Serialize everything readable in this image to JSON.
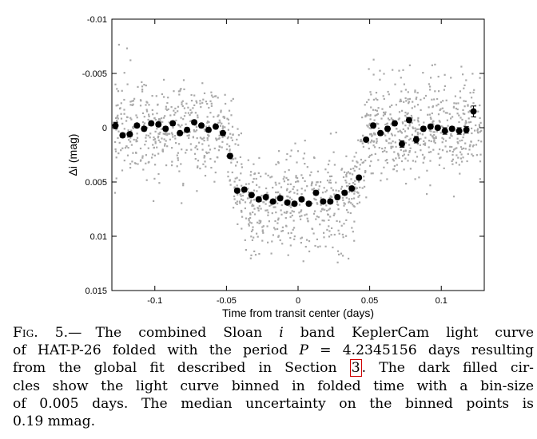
{
  "figure": {
    "chart_data": {
      "type": "scatter",
      "xlabel": "Time from transit center (days)",
      "ylabel": "Δi (mag)",
      "xlim": [
        -0.13,
        0.13
      ],
      "ylim": [
        -0.01,
        0.015
      ],
      "y_inverted": true,
      "grid": false,
      "xticks": [
        -0.1,
        -0.05,
        0,
        0.05,
        0.1
      ],
      "xtick_labels": [
        "-0.1",
        "-0.05",
        "0",
        "0.05",
        "0.1"
      ],
      "yticks": [
        -0.01,
        -0.005,
        0,
        0.005,
        0.01,
        0.015
      ],
      "ytick_labels": [
        "-0.01",
        "-0.005",
        "0",
        "0.005",
        "0.01",
        "0.015"
      ],
      "series": [
        {
          "kind": "raw",
          "color": "#a9a9a9",
          "shape": "small-dot",
          "model": {
            "depth": 0.0068,
            "t14": 0.1,
            "ingress": 0.012,
            "scatter_sigma": 0.0022,
            "x_min": -0.128,
            "x_max": 0.128,
            "count": 1500
          }
        },
        {
          "kind": "binned",
          "color": "#000000",
          "shape": "filled-circle",
          "error_bars": true,
          "x": [
            -0.1275,
            -0.1225,
            -0.1175,
            -0.1125,
            -0.1075,
            -0.1025,
            -0.0975,
            -0.0925,
            -0.0875,
            -0.0825,
            -0.0775,
            -0.0725,
            -0.0675,
            -0.0625,
            -0.0575,
            -0.0525,
            -0.0475,
            -0.0425,
            -0.0375,
            -0.0325,
            -0.0275,
            -0.0225,
            -0.0175,
            -0.0125,
            -0.0075,
            -0.0025,
            0.0025,
            0.0075,
            0.0125,
            0.0175,
            0.0225,
            0.0275,
            0.0325,
            0.0375,
            0.0425,
            0.0475,
            0.0525,
            0.0575,
            0.0625,
            0.0675,
            0.0725,
            0.0775,
            0.0825,
            0.0875,
            0.0925,
            0.0975,
            0.1025,
            0.1075,
            0.1125,
            0.1175,
            0.1225
          ],
          "y": [
            -0.0002,
            0.0007,
            0.0006,
            -0.0002,
            0.0001,
            -0.0004,
            -0.0003,
            0.0001,
            -0.0004,
            0.0005,
            0.0002,
            -0.0005,
            -0.0002,
            0.0002,
            -0.0001,
            0.0005,
            0.0026,
            0.0058,
            0.0057,
            0.0062,
            0.0066,
            0.0064,
            0.0068,
            0.0065,
            0.0069,
            0.007,
            0.0066,
            0.007,
            0.006,
            0.0068,
            0.0068,
            0.0064,
            0.006,
            0.0056,
            0.0046,
            0.0011,
            -0.0002,
            0.0005,
            0.0001,
            -0.0004,
            0.0015,
            -0.0007,
            0.0011,
            0.0001,
            -0.0001,
            0,
            0.0003,
            0.0001,
            0.0003,
            0.0002,
            -0.0015
          ],
          "yerr": [
            0.0003,
            0.0002,
            0.0002,
            0.0002,
            0.0002,
            0.0002,
            0.0002,
            0.0002,
            0.0002,
            0.0002,
            0.0002,
            0.0002,
            0.0002,
            0.0002,
            0.0002,
            0.0002,
            0.0002,
            0.0002,
            0.0002,
            0.0002,
            0.0002,
            0.0002,
            0.0002,
            0.0002,
            0.0002,
            0.0002,
            0.0002,
            0.0002,
            0.0002,
            0.0002,
            0.0002,
            0.0002,
            0.0002,
            0.0002,
            0.0002,
            0.0002,
            0.0002,
            0.0002,
            0.0002,
            0.0002,
            0.0003,
            0.0002,
            0.0003,
            0.0002,
            0.0002,
            0.0002,
            0.0003,
            0.0002,
            0.0003,
            0.0003,
            0.0005
          ]
        }
      ]
    }
  },
  "caption": {
    "label": "Fig. 5.—",
    "lines": [
      {
        "parts": [
          {
            "t": "The combined Sloan "
          },
          {
            "t": "i",
            "em": true
          },
          {
            "t": " band KeplerCam light curve"
          }
        ]
      },
      {
        "parts": [
          {
            "t": "of HAT-P-26 folded with the period "
          },
          {
            "t": "P",
            "em": true
          },
          {
            "t": " = 4.2345156 days resulting"
          }
        ]
      },
      {
        "parts": [
          {
            "t": "from the global fit described in Section "
          },
          {
            "t": "3",
            "ref": true
          },
          {
            "t": ".  The dark filled cir-"
          }
        ]
      },
      {
        "parts": [
          {
            "t": "cles show the light curve binned in folded time with a bin-size"
          }
        ]
      },
      {
        "parts": [
          {
            "t": "of 0.005 days.  The median uncertainty on the binned points is"
          }
        ]
      },
      {
        "parts": [
          {
            "t": "0.19 mmag."
          }
        ],
        "last": true
      }
    ]
  }
}
